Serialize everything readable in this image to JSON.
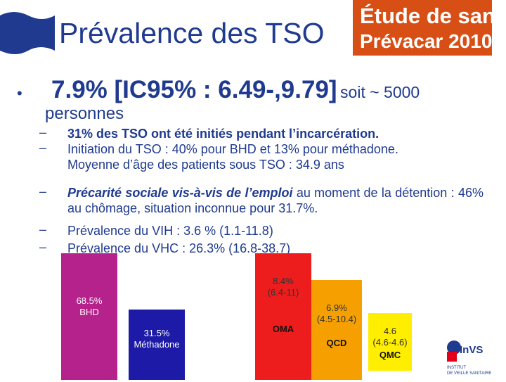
{
  "header": {
    "title": "Prévalence des TSO",
    "logo_line1": "Étude de santé",
    "logo_line2": "Prévacar 2010"
  },
  "main": {
    "headline_big": "7.9% [IC95% : 6.49-,9.79]",
    "headline_small": "soit ~ 5000",
    "headline_line2": "personnes",
    "bullets": {
      "b1": "31% des TSO ont été initiés pendant l’incarcération.",
      "b2": "Initiation du TSO : 40% pour BHD et 13% pour méthadone.",
      "b2b": "Moyenne d’âge des patients sous TSO : 34.9 ans",
      "b3_em": "Précarité sociale vis-à-vis de l’emploi",
      "b3_rest": " au moment de la détention : 46% au chômage, situation inconnue pour 31.7%.",
      "b4": "Prévalence du VIH : 3.6 % (1.1-11.8)",
      "b5": "Prévalence du VHC : 26.3% (16.8-38.7)"
    }
  },
  "bars": {
    "bhd": {
      "value": "68.5%",
      "name": "BHD",
      "color": "#b5228b"
    },
    "methadone": {
      "value": "31.5%",
      "name": "Méthadone",
      "color": "#1c1aa6"
    },
    "oma": {
      "value": "8.4%",
      "ci": "(6.4-11)",
      "name": "OMA",
      "color": "#ee1d1d"
    },
    "qcd": {
      "value": "6.9%",
      "ci": "(4.5-10.4)",
      "name": "QCD",
      "color": "#f5a000"
    },
    "qmc": {
      "value": "4.6",
      "ci": "(4.6-4.6)",
      "name": "QMC",
      "color": "#ffee00"
    }
  },
  "footer": {
    "logo_name": "InVS",
    "logo_sub1": "INSTITUT",
    "logo_sub2": "DE VEILLE SANITAIRE"
  }
}
